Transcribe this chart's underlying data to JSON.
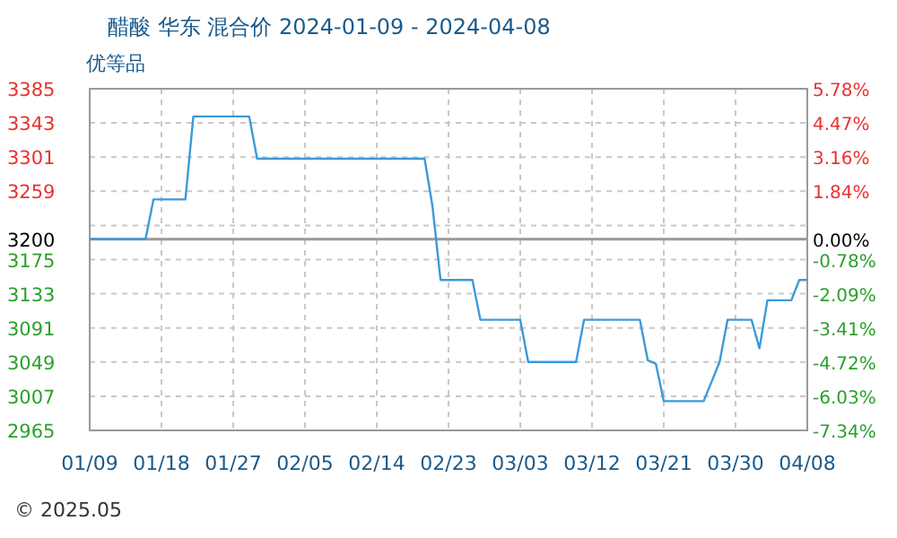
{
  "chart_data": {
    "type": "line",
    "title": "醋酸 华东 混合价 2024-01-09 - 2024-04-08",
    "subtitle": "优等品",
    "annotations": [
      "© 2025.05"
    ],
    "series": [
      {
        "color": "#3a9ad9",
        "x": [
          "2024-01-09",
          "2024-01-16",
          "2024-01-17",
          "2024-01-21",
          "2024-01-22",
          "2024-01-29",
          "2024-01-30",
          "2024-02-20",
          "2024-02-21",
          "2024-02-22",
          "2024-02-26",
          "2024-02-27",
          "2024-03-03",
          "2024-03-04",
          "2024-03-10",
          "2024-03-11",
          "2024-03-18",
          "2024-03-19",
          "2024-03-20",
          "2024-03-21",
          "2024-03-26",
          "2024-03-27",
          "2024-03-28",
          "2024-03-29",
          "2024-04-01",
          "2024-04-02",
          "2024-04-03",
          "2024-04-06",
          "2024-04-07",
          "2024-04-08"
        ],
        "values": [
          3200,
          3200,
          3249,
          3249,
          3351,
          3351,
          3299,
          3299,
          3240,
          3150,
          3150,
          3101,
          3101,
          3049,
          3049,
          3101,
          3101,
          3051,
          3047,
          3001,
          3001,
          3025,
          3049,
          3101,
          3101,
          3066,
          3125,
          3125,
          3150,
          3150
        ]
      }
    ],
    "xlim": [
      "2024-01-09",
      "2024-04-08"
    ],
    "xticks": [
      {
        "value": "2024-01-09",
        "label": "01/09"
      },
      {
        "value": "2024-01-18",
        "label": "01/18"
      },
      {
        "value": "2024-01-27",
        "label": "01/27"
      },
      {
        "value": "2024-02-05",
        "label": "02/05"
      },
      {
        "value": "2024-02-14",
        "label": "02/14"
      },
      {
        "value": "2024-02-23",
        "label": "02/23"
      },
      {
        "value": "2024-03-03",
        "label": "03/03"
      },
      {
        "value": "2024-03-12",
        "label": "03/12"
      },
      {
        "value": "2024-03-21",
        "label": "03/21"
      },
      {
        "value": "2024-03-30",
        "label": "03/30"
      },
      {
        "value": "2024-04-08",
        "label": "04/08"
      }
    ],
    "ylim": [
      2965,
      3385
    ],
    "yticks": [
      3385,
      3343,
      3301,
      3259,
      {
        "value": 3217,
        "label": null
      },
      3200,
      3175,
      3133,
      3091,
      3049,
      3007,
      2965
    ],
    "y2lim": [
      -7.34,
      5.78
    ],
    "y2ticks": [
      {
        "value": 5.78,
        "label": "5.78%"
      },
      {
        "value": 4.47,
        "label": "4.47%"
      },
      {
        "value": 3.16,
        "label": "3.16%"
      },
      {
        "value": 1.84,
        "label": "1.84%"
      },
      {
        "value": 0,
        "label": "0.00%"
      },
      {
        "value": -0.78,
        "label": "-0.78%"
      },
      {
        "value": -2.09,
        "label": "-2.09%"
      },
      {
        "value": -3.41,
        "label": "-3.41%"
      },
      {
        "value": -4.72,
        "label": "-4.72%"
      },
      {
        "value": -6.03,
        "label": "-6.03%"
      },
      {
        "value": -7.34,
        "label": "-7.34%"
      }
    ],
    "ref_lines": [
      {
        "axis": "y",
        "value": 3200,
        "color": "#999999"
      }
    ],
    "grid": true,
    "marker": "none",
    "line_style": "solid"
  }
}
